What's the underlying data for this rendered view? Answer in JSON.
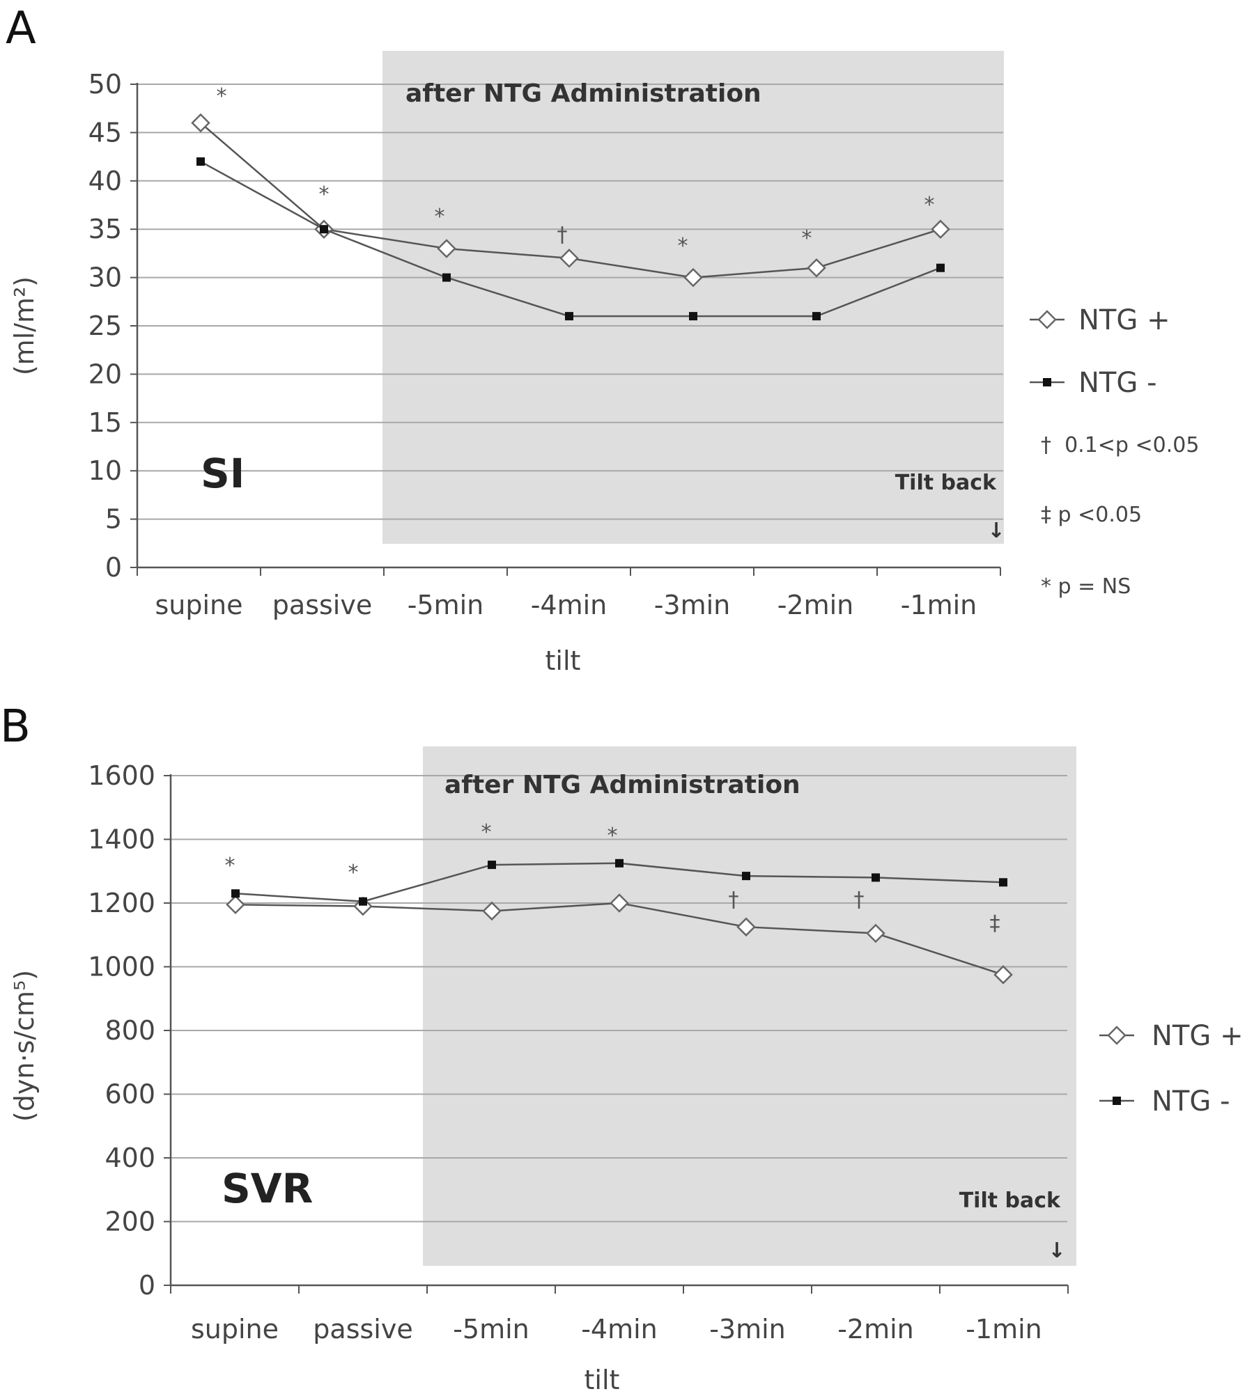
{
  "chart_data": [
    {
      "type": "line",
      "panel": "A",
      "label": "SI",
      "ylabel": "(ml/m²)",
      "xlabel": "tilt",
      "ylim": [
        0,
        50
      ],
      "yticks": [
        0,
        5,
        10,
        15,
        20,
        25,
        30,
        35,
        40,
        45,
        50
      ],
      "categories": [
        "supine",
        "passive",
        "-5min",
        "-4min",
        "-3min",
        "-2min",
        "-1min"
      ],
      "shaded_region_label": "after NTG Administration",
      "tilt_back_label": "Tilt back",
      "tilt_back_arrow": "↓",
      "series": [
        {
          "name": "NTG  +",
          "marker": "diamond-open",
          "values": [
            46,
            35,
            33,
            32,
            30,
            31,
            35
          ]
        },
        {
          "name": "NTG  -",
          "marker": "square-filled",
          "values": [
            42,
            35,
            30,
            26,
            26,
            26,
            31
          ]
        }
      ],
      "significance": [
        "*",
        "*",
        "*",
        "†",
        "*",
        "*",
        "*"
      ],
      "notes": [
        "†  0.1<p <0.05",
        "‡ p <0.05",
        "* p = NS"
      ],
      "grid": true
    },
    {
      "type": "line",
      "panel": "B",
      "label": "SVR",
      "ylabel": "(dyn·s/cm⁵)",
      "xlabel": "tilt",
      "ylim": [
        0,
        1600
      ],
      "yticks": [
        0,
        200,
        400,
        600,
        800,
        1000,
        1200,
        1400,
        1600
      ],
      "categories": [
        "supine",
        "passive",
        "-5min",
        "-4min",
        "-3min",
        "-2min",
        "-1min"
      ],
      "shaded_region_label": "after NTG Administration",
      "tilt_back_label": "Tilt back",
      "tilt_back_arrow": "↓",
      "series": [
        {
          "name": "NTG  +",
          "marker": "diamond-open",
          "values": [
            1195,
            1190,
            1175,
            1200,
            1125,
            1105,
            975
          ]
        },
        {
          "name": "NTG  -",
          "marker": "square-filled",
          "values": [
            1230,
            1205,
            1320,
            1325,
            1285,
            1280,
            1265
          ]
        }
      ],
      "significance": [
        "*",
        "*",
        "*",
        "*",
        "†",
        "†",
        "‡"
      ],
      "grid": true
    }
  ]
}
